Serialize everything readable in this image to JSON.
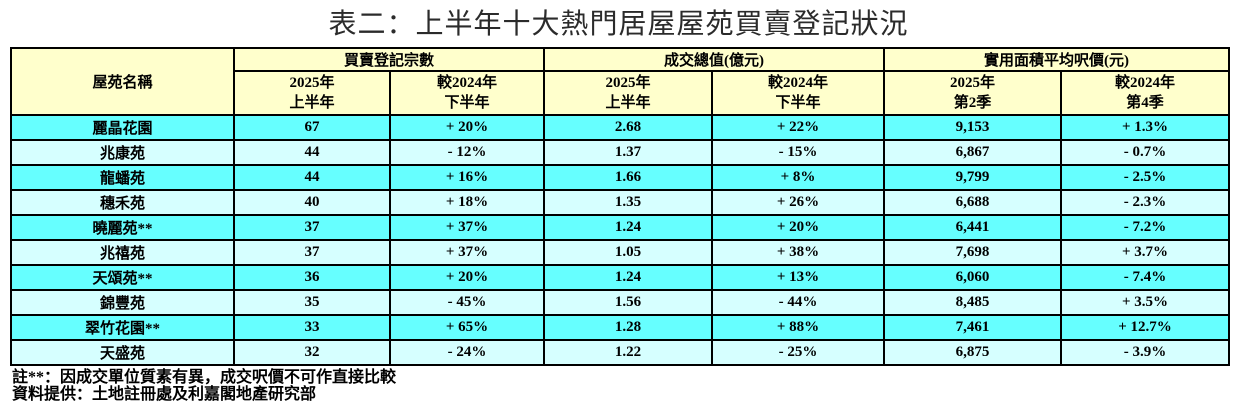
{
  "title": "表二：上半年十大熱門居屋屋苑買賣登記狀況",
  "table": {
    "corner_header": "屋苑名稱",
    "groups": [
      {
        "label": "買賣登記宗數"
      },
      {
        "label": "成交總值(億元)"
      },
      {
        "label": "實用面積平均呎價(元)"
      }
    ],
    "sub_headers": [
      {
        "line1": "2025年",
        "line2": "上半年"
      },
      {
        "line1": "較2024年",
        "line2": "下半年"
      },
      {
        "line1": "2025年",
        "line2": "上半年"
      },
      {
        "line1": "較2024年",
        "line2": "下半年"
      },
      {
        "line1": "2025年",
        "line2": "第2季"
      },
      {
        "line1": "較2024年",
        "line2": "第4季"
      }
    ],
    "rows": [
      {
        "name": "麗晶花園",
        "reg_2025": "67",
        "reg_change": "+ 20%",
        "value_2025": "2.68",
        "value_change": "+ 22%",
        "price_2025": "9,153",
        "price_change": "+ 1.3%"
      },
      {
        "name": "兆康苑",
        "reg_2025": "44",
        "reg_change": "- 12%",
        "value_2025": "1.37",
        "value_change": "- 15%",
        "price_2025": "6,867",
        "price_change": "- 0.7%"
      },
      {
        "name": "龍蟠苑",
        "reg_2025": "44",
        "reg_change": "+ 16%",
        "value_2025": "1.66",
        "value_change": "+ 8%",
        "price_2025": "9,799",
        "price_change": "- 2.5%"
      },
      {
        "name": "穗禾苑",
        "reg_2025": "40",
        "reg_change": "+ 18%",
        "value_2025": "1.35",
        "value_change": "+ 26%",
        "price_2025": "6,688",
        "price_change": "- 2.3%"
      },
      {
        "name": "曉麗苑**",
        "reg_2025": "37",
        "reg_change": "+ 37%",
        "value_2025": "1.24",
        "value_change": "+ 20%",
        "price_2025": "6,441",
        "price_change": "- 7.2%"
      },
      {
        "name": "兆禧苑",
        "reg_2025": "37",
        "reg_change": "+ 37%",
        "value_2025": "1.05",
        "value_change": "+ 38%",
        "price_2025": "7,698",
        "price_change": "+ 3.7%"
      },
      {
        "name": "天頌苑**",
        "reg_2025": "36",
        "reg_change": "+ 20%",
        "value_2025": "1.24",
        "value_change": "+ 13%",
        "price_2025": "6,060",
        "price_change": "- 7.4%"
      },
      {
        "name": "錦豐苑",
        "reg_2025": "35",
        "reg_change": "- 45%",
        "value_2025": "1.56",
        "value_change": "- 44%",
        "price_2025": "8,485",
        "price_change": "+ 3.5%"
      },
      {
        "name": "翠竹花園**",
        "reg_2025": "33",
        "reg_change": "+ 65%",
        "value_2025": "1.28",
        "value_change": "+ 88%",
        "price_2025": "7,461",
        "price_change": "+ 12.7%"
      },
      {
        "name": "天盛苑",
        "reg_2025": "32",
        "reg_change": "- 24%",
        "value_2025": "1.22",
        "value_change": "- 25%",
        "price_2025": "6,875",
        "price_change": "- 3.9%"
      }
    ]
  },
  "notes": [
    "註**：因成交單位質素有異，成交呎價不可作直接比較",
    "資料提供：土地註冊處及利嘉閣地產研究部"
  ],
  "colors": {
    "header_bg": "#FFFFCC",
    "row_bright_bg": "#66FFFF",
    "row_pale_bg": "#D6FFFF",
    "border": "#000000"
  }
}
